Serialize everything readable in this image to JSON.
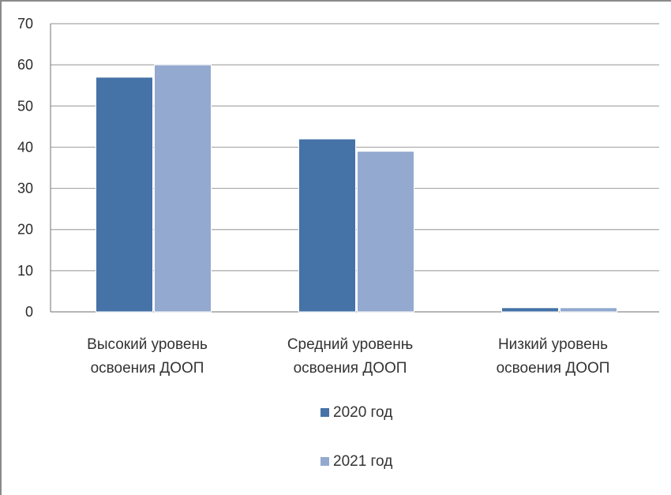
{
  "chart_data": {
    "type": "bar",
    "categories": [
      "Высокий уровень освоения ДООП",
      "Средний уровенњ освоения ДООП",
      "Низкий уровень освоения ДООП"
    ],
    "category_lines": [
      [
        "Высокий уровень",
        "освоения ДООП"
      ],
      [
        "Средний уровенњ",
        "освоения ДООП"
      ],
      [
        "Низкий уровень",
        "освоения ДООП"
      ]
    ],
    "series": [
      {
        "name": "2020 год",
        "values": [
          57,
          42,
          1
        ],
        "color": "#4572a7"
      },
      {
        "name": "2021 год",
        "values": [
          60,
          39,
          1
        ],
        "color": "#93a9cf"
      }
    ],
    "ylim": [
      0,
      70
    ],
    "yticks": [
      0,
      10,
      20,
      30,
      40,
      50,
      60,
      70
    ],
    "grid": true,
    "legend_position": "bottom",
    "title": "",
    "xlabel": "",
    "ylabel": ""
  }
}
